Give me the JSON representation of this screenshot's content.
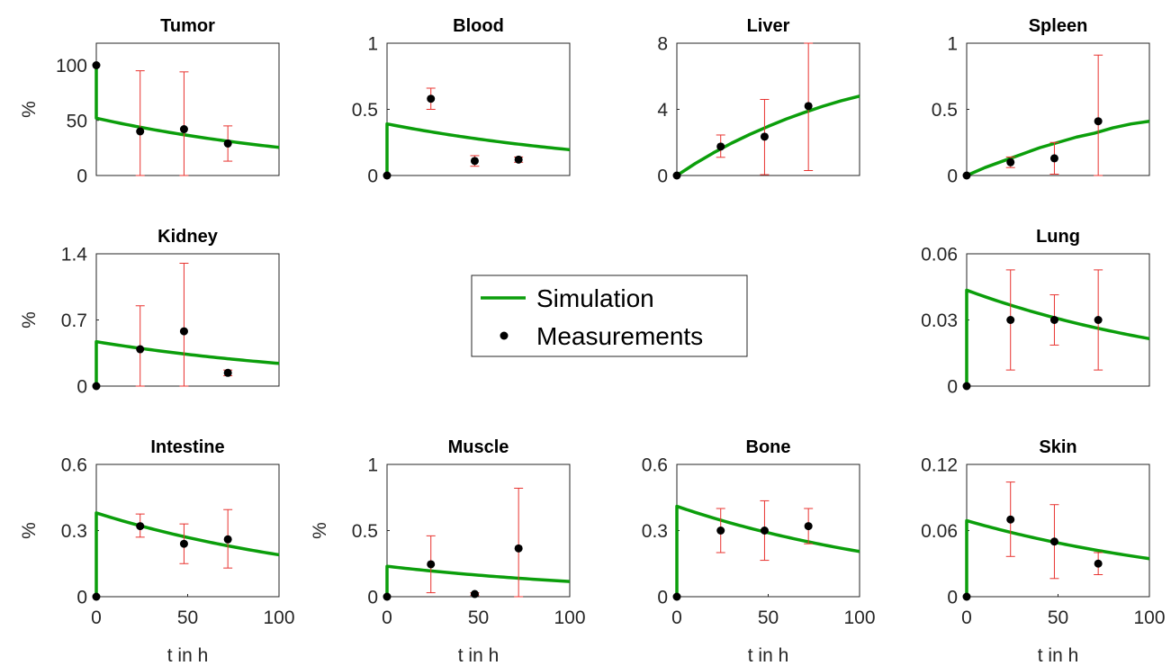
{
  "colors": {
    "simulation": "#0b9e0b",
    "measurement": "#000000",
    "errorbar": "#e8332f"
  },
  "legend": {
    "simulation_label": "Simulation",
    "measurement_label": "Measurements",
    "placement": "center"
  },
  "chart_data": [
    {
      "type": "line",
      "title": "Tumor",
      "xlabel": "",
      "ylabel": "%",
      "xlim": [
        0,
        100
      ],
      "ylim": [
        0,
        120
      ],
      "yticks": [
        "0",
        "50",
        "100"
      ],
      "ytick_values": [
        0,
        50,
        100
      ],
      "xticks": [],
      "xtick_values": [],
      "simulation": {
        "name": "Simulation",
        "x0": 0,
        "y0": 100,
        "y_after": 52,
        "y_end": 25.5
      },
      "measurements": {
        "name": "Measurements",
        "x": [
          0,
          24,
          48,
          72
        ],
        "y": [
          100,
          40,
          42,
          29
        ],
        "lower": [
          100,
          0,
          0,
          13
        ],
        "upper": [
          100,
          95,
          94,
          45
        ]
      }
    },
    {
      "type": "line",
      "title": "Blood",
      "xlabel": "",
      "ylabel": "",
      "xlim": [
        0,
        100
      ],
      "ylim": [
        0,
        1
      ],
      "yticks": [
        "0",
        "0.5",
        "1"
      ],
      "ytick_values": [
        0,
        0.5,
        1
      ],
      "xticks": [],
      "xtick_values": [],
      "simulation": {
        "name": "Simulation",
        "x0": 0,
        "y0": 0,
        "y_after": 0.39,
        "y_end": 0.195
      },
      "measurements": {
        "name": "Measurements",
        "x": [
          0,
          24,
          48,
          72
        ],
        "y": [
          0,
          0.58,
          0.11,
          0.12
        ],
        "lower": [
          0,
          0.5,
          0.07,
          0.1
        ],
        "upper": [
          0,
          0.66,
          0.15,
          0.14
        ]
      }
    },
    {
      "type": "line",
      "title": "Liver",
      "xlabel": "",
      "ylabel": "",
      "xlim": [
        0,
        100
      ],
      "ylim": [
        0,
        8
      ],
      "yticks": [
        "0",
        "4",
        "8"
      ],
      "ytick_values": [
        0,
        4,
        8
      ],
      "xticks": [],
      "xtick_values": [],
      "simulation": {
        "name": "Simulation",
        "points": [
          [
            0,
            0
          ],
          [
            10,
            0.72
          ],
          [
            20,
            1.37
          ],
          [
            30,
            1.96
          ],
          [
            40,
            2.49
          ],
          [
            50,
            2.97
          ],
          [
            60,
            3.42
          ],
          [
            70,
            3.82
          ],
          [
            80,
            4.19
          ],
          [
            90,
            4.52
          ],
          [
            100,
            4.8
          ]
        ]
      },
      "measurements": {
        "name": "Measurements",
        "x": [
          0,
          24,
          48,
          72
        ],
        "y": [
          0,
          1.75,
          2.35,
          4.2
        ],
        "lower": [
          0,
          1.1,
          0.05,
          0.3
        ],
        "upper": [
          0,
          2.45,
          4.6,
          8
        ]
      }
    },
    {
      "type": "line",
      "title": "Spleen",
      "xlabel": "",
      "ylabel": "",
      "xlim": [
        0,
        100
      ],
      "ylim": [
        0,
        1
      ],
      "yticks": [
        "0",
        "0.5",
        "1"
      ],
      "ytick_values": [
        0,
        0.5,
        1
      ],
      "xticks": [],
      "xtick_values": [],
      "simulation": {
        "name": "Simulation",
        "points": [
          [
            0,
            0
          ],
          [
            10,
            0.06
          ],
          [
            20,
            0.11
          ],
          [
            30,
            0.16
          ],
          [
            40,
            0.21
          ],
          [
            50,
            0.25
          ],
          [
            60,
            0.29
          ],
          [
            70,
            0.32
          ],
          [
            80,
            0.36
          ],
          [
            90,
            0.39
          ],
          [
            100,
            0.41
          ]
        ]
      },
      "measurements": {
        "name": "Measurements",
        "x": [
          0,
          24,
          48,
          72
        ],
        "y": [
          0,
          0.1,
          0.13,
          0.41
        ],
        "lower": [
          0,
          0.06,
          0.01,
          0
        ],
        "upper": [
          0,
          0.14,
          0.25,
          0.91
        ]
      }
    },
    {
      "type": "line",
      "title": "Kidney",
      "xlabel": "",
      "ylabel": "%",
      "xlim": [
        0,
        100
      ],
      "ylim": [
        0,
        1.4
      ],
      "yticks": [
        "0",
        "0.7",
        "1.4"
      ],
      "ytick_values": [
        0,
        0.7,
        1.4
      ],
      "xticks": [],
      "xtick_values": [],
      "simulation": {
        "name": "Simulation",
        "x0": 0,
        "y0": 0,
        "y_after": 0.47,
        "y_end": 0.24
      },
      "measurements": {
        "name": "Measurements",
        "x": [
          0,
          24,
          48,
          72
        ],
        "y": [
          0,
          0.39,
          0.58,
          0.14
        ],
        "lower": [
          0,
          0,
          0,
          0.11
        ],
        "upper": [
          0,
          0.85,
          1.3,
          0.17
        ]
      }
    },
    {
      "type": "line",
      "title": "Lung",
      "xlabel": "",
      "ylabel": "",
      "xlim": [
        0,
        100
      ],
      "ylim": [
        0,
        0.06
      ],
      "yticks": [
        "0",
        "0.03",
        "0.06"
      ],
      "ytick_values": [
        0,
        0.03,
        0.06
      ],
      "xticks": [],
      "xtick_values": [],
      "simulation": {
        "name": "Simulation",
        "x0": 0,
        "y0": 0,
        "y_after": 0.0435,
        "y_end": 0.0215
      },
      "measurements": {
        "name": "Measurements",
        "x": [
          0,
          24,
          48,
          72
        ],
        "y": [
          0,
          0.03,
          0.03,
          0.03
        ],
        "lower": [
          0,
          0.0073,
          0.0186,
          0.0073
        ],
        "upper": [
          0,
          0.0527,
          0.0414,
          0.0527
        ]
      }
    },
    {
      "type": "line",
      "title": "Intestine",
      "xlabel": "t in h",
      "ylabel": "%",
      "xlim": [
        0,
        100
      ],
      "ylim": [
        0,
        0.6
      ],
      "yticks": [
        "0",
        "0.3",
        "0.6"
      ],
      "ytick_values": [
        0,
        0.3,
        0.6
      ],
      "xticks": [
        "0",
        "50",
        "100"
      ],
      "xtick_values": [
        0,
        50,
        100
      ],
      "simulation": {
        "name": "Simulation",
        "x0": 0,
        "y0": 0,
        "y_after": 0.38,
        "y_end": 0.19
      },
      "measurements": {
        "name": "Measurements",
        "x": [
          0,
          24,
          48,
          72
        ],
        "y": [
          0,
          0.32,
          0.24,
          0.26
        ],
        "lower": [
          0,
          0.27,
          0.15,
          0.13
        ],
        "upper": [
          0,
          0.375,
          0.33,
          0.395
        ]
      }
    },
    {
      "type": "line",
      "title": "Muscle",
      "xlabel": "t in h",
      "ylabel": "%",
      "xlim": [
        0,
        100
      ],
      "ylim": [
        0,
        1
      ],
      "yticks": [
        "0",
        "0.5",
        "1"
      ],
      "ytick_values": [
        0,
        0.5,
        1
      ],
      "xticks": [
        "0",
        "50",
        "100"
      ],
      "xtick_values": [
        0,
        50,
        100
      ],
      "simulation": {
        "name": "Simulation",
        "x0": 0,
        "y0": 0,
        "y_after": 0.23,
        "y_end": 0.115
      },
      "measurements": {
        "name": "Measurements",
        "x": [
          0,
          24,
          48,
          72
        ],
        "y": [
          0,
          0.245,
          0.02,
          0.365
        ],
        "lower": [
          0,
          0.03,
          0.01,
          0
        ],
        "upper": [
          0,
          0.46,
          0.03,
          0.82
        ]
      }
    },
    {
      "type": "line",
      "title": "Bone",
      "xlabel": "t in h",
      "ylabel": "",
      "xlim": [
        0,
        100
      ],
      "ylim": [
        0,
        0.6
      ],
      "yticks": [
        "0",
        "0.3",
        "0.6"
      ],
      "ytick_values": [
        0,
        0.3,
        0.6
      ],
      "xticks": [
        "0",
        "50",
        "100"
      ],
      "xtick_values": [
        0,
        50,
        100
      ],
      "simulation": {
        "name": "Simulation",
        "x0": 0,
        "y0": 0,
        "y_after": 0.41,
        "y_end": 0.205
      },
      "measurements": {
        "name": "Measurements",
        "x": [
          0,
          24,
          48,
          72
        ],
        "y": [
          0,
          0.3,
          0.3,
          0.32
        ],
        "lower": [
          0,
          0.2,
          0.165,
          0.24
        ],
        "upper": [
          0,
          0.4,
          0.435,
          0.4
        ]
      }
    },
    {
      "type": "line",
      "title": "Skin",
      "xlabel": "t in h",
      "ylabel": "",
      "xlim": [
        0,
        100
      ],
      "ylim": [
        0,
        0.12
      ],
      "yticks": [
        "0",
        "0.06",
        "0.12"
      ],
      "ytick_values": [
        0,
        0.06,
        0.12
      ],
      "xticks": [
        "0",
        "50",
        "100"
      ],
      "xtick_values": [
        0,
        50,
        100
      ],
      "simulation": {
        "name": "Simulation",
        "x0": 0,
        "y0": 0,
        "y_after": 0.069,
        "y_end": 0.0345
      },
      "measurements": {
        "name": "Measurements",
        "x": [
          0,
          24,
          48,
          72
        ],
        "y": [
          0,
          0.07,
          0.05,
          0.03
        ],
        "lower": [
          0,
          0.0365,
          0.0165,
          0.02
        ],
        "upper": [
          0,
          0.104,
          0.0835,
          0.04
        ]
      }
    }
  ]
}
